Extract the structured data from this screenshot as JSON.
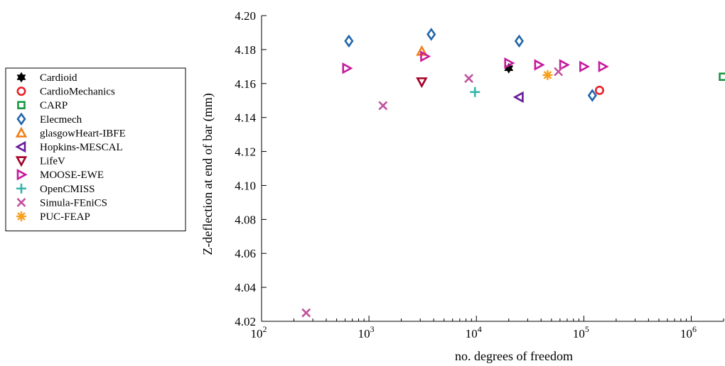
{
  "chart_data": {
    "type": "scatter",
    "title": "",
    "xlabel": "no. degrees of freedom",
    "ylabel": "Z-deflection at end of bar (mm)",
    "xscale": "log",
    "xlim": [
      100,
      2000000
    ],
    "ylim": [
      4.02,
      4.2
    ],
    "x_ticks": [
      {
        "value": 100,
        "base": "10",
        "exp": "2"
      },
      {
        "value": 1000,
        "base": "10",
        "exp": "3"
      },
      {
        "value": 10000,
        "base": "10",
        "exp": "4"
      },
      {
        "value": 100000,
        "base": "10",
        "exp": "5"
      },
      {
        "value": 1000000,
        "base": "10",
        "exp": "6"
      }
    ],
    "y_ticks": [
      "4.02",
      "4.04",
      "4.06",
      "4.08",
      "4.10",
      "4.12",
      "4.14",
      "4.16",
      "4.18",
      "4.20"
    ],
    "grid": false,
    "legend_position": "left",
    "series": [
      {
        "name": "Cardioid",
        "marker": "hexagram",
        "color": "#000000",
        "points": [
          [
            20000,
            4.169
          ]
        ]
      },
      {
        "name": "CardioMechanics",
        "marker": "circle",
        "color": "#e8202a",
        "points": [
          [
            140000,
            4.156
          ]
        ]
      },
      {
        "name": "CARP",
        "marker": "square",
        "color": "#1a9641",
        "points": [
          [
            2000000,
            4.164
          ]
        ]
      },
      {
        "name": "Elecmech",
        "marker": "diamond",
        "color": "#2166ac",
        "points": [
          [
            650,
            4.185
          ],
          [
            3800,
            4.189
          ],
          [
            25000,
            4.185
          ],
          [
            120000,
            4.153
          ]
        ]
      },
      {
        "name": "glasgowHeart-IBFE",
        "marker": "triangle-up",
        "color": "#f07f1a",
        "points": [
          [
            3100,
            4.179
          ]
        ]
      },
      {
        "name": "Hopkins-MESCAL",
        "marker": "triangle-left",
        "color": "#6a1b9a",
        "points": [
          [
            25000,
            4.152
          ]
        ]
      },
      {
        "name": "LifeV",
        "marker": "triangle-down",
        "color": "#a50026",
        "points": [
          [
            3100,
            4.161
          ]
        ]
      },
      {
        "name": "MOOSE-EWE",
        "marker": "triangle-right",
        "color": "#c51b9d",
        "points": [
          [
            620,
            4.169
          ],
          [
            3300,
            4.176
          ],
          [
            20000,
            4.172
          ],
          [
            38000,
            4.171
          ],
          [
            65000,
            4.171
          ],
          [
            100000,
            4.17
          ],
          [
            150000,
            4.17
          ]
        ]
      },
      {
        "name": "OpenCMISS",
        "marker": "plus",
        "color": "#35b5a8",
        "points": [
          [
            9700,
            4.155
          ]
        ]
      },
      {
        "name": "Simula-FEniCS",
        "marker": "x",
        "color": "#c2519e",
        "points": [
          [
            260,
            4.025
          ],
          [
            1350,
            4.147
          ],
          [
            8500,
            4.163
          ],
          [
            58000,
            4.167
          ]
        ]
      },
      {
        "name": "PUC-FEAP",
        "marker": "asterisk",
        "color": "#f7a01c",
        "points": [
          [
            46000,
            4.165
          ]
        ]
      }
    ]
  }
}
